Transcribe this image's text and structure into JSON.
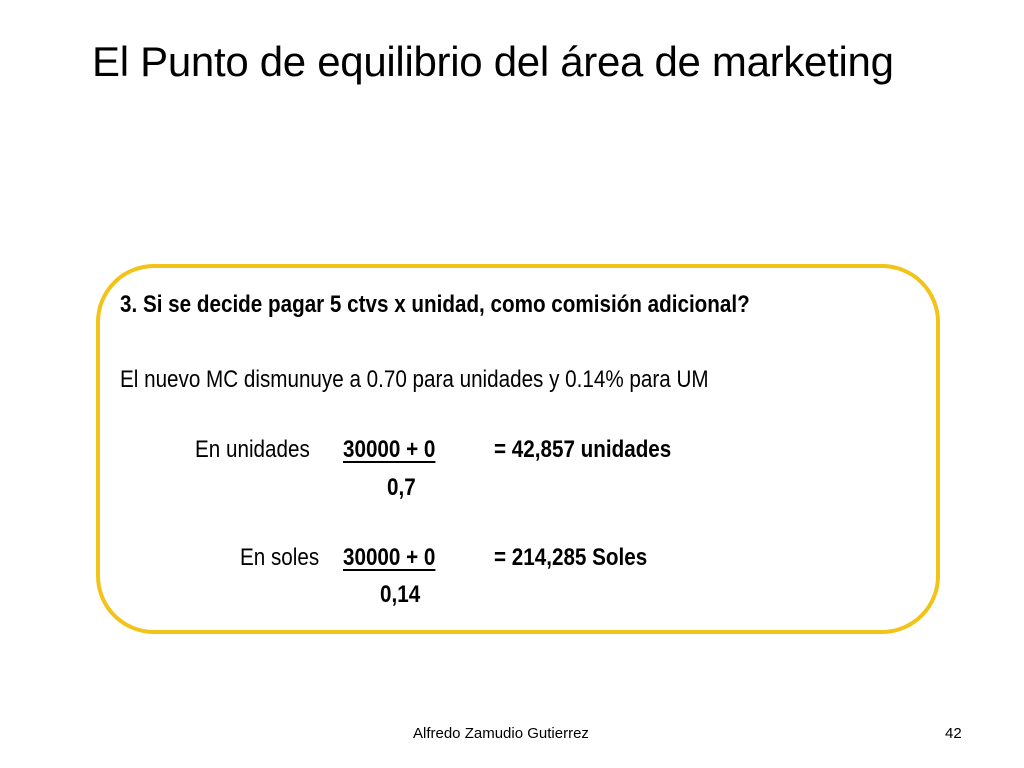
{
  "slide": {
    "title": "El Punto de equilibrio del área de marketing",
    "accent_color": "#f2c318"
  },
  "content": {
    "question": "3. Si se decide pagar 5 ctvs x unidad, como comisión adicional?",
    "statement": "El nuevo MC dismunuye a 0.70 para unidades y 0.14% para UM",
    "units_calc": {
      "label": "En unidades",
      "numerator": "30000 + 0",
      "denominator": "0,7",
      "result": "= 42,857 unidades"
    },
    "soles_calc": {
      "label": "En soles",
      "numerator": "30000 + 0",
      "denominator": "0,14",
      "result": "= 214,285 Soles"
    }
  },
  "footer": {
    "author": "Alfredo Zamudio Gutierrez",
    "page_number": "42"
  }
}
